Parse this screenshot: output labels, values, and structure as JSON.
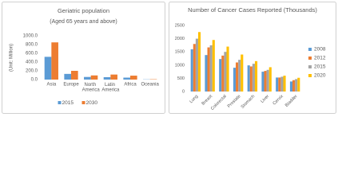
{
  "chart_data": [
    {
      "type": "bar",
      "title": "Geriatric population",
      "subtitle": "(Aged 65 years and above)",
      "y_label": "(Unit: Million)",
      "categories": [
        "Asia",
        "Europe",
        "North America",
        "Latin America",
        "Africa",
        "Oceania"
      ],
      "series": [
        {
          "name": "2015",
          "color": "#5b9bd5",
          "values": [
            520,
            130,
            60,
            55,
            45,
            5
          ]
        },
        {
          "name": "2030",
          "color": "#ed7d31",
          "values": [
            850,
            200,
            95,
            115,
            90,
            8
          ]
        }
      ],
      "ylim": [
        0,
        1000
      ],
      "yticks": [
        {
          "value": 0,
          "label": "0.0"
        },
        {
          "value": 200,
          "label": "200.0"
        },
        {
          "value": 400,
          "label": "400.0"
        },
        {
          "value": 600,
          "label": "600.0"
        },
        {
          "value": 800,
          "label": "800.0"
        },
        {
          "value": 1000,
          "label": "1000.0"
        }
      ],
      "legend": "bottom",
      "grid": false
    },
    {
      "type": "bar",
      "title": "Number of Cancer Cases Reported (Thousands)",
      "categories": [
        "Lung",
        "Breast",
        "Colorectal",
        "Prostate",
        "Stomach",
        "Liver",
        "Cervix",
        "Bladder"
      ],
      "series": [
        {
          "name": "2008",
          "color": "#5b9bd5",
          "values": [
            1600,
            1380,
            1230,
            900,
            990,
            750,
            530,
            380
          ]
        },
        {
          "name": "2012",
          "color": "#ed7d31",
          "values": [
            1800,
            1670,
            1360,
            1100,
            950,
            780,
            530,
            430
          ]
        },
        {
          "name": "2015",
          "color": "#a5a5a5",
          "values": [
            2000,
            1750,
            1500,
            1200,
            1050,
            820,
            560,
            470
          ]
        },
        {
          "name": "2020",
          "color": "#ffc000",
          "values": [
            2250,
            1950,
            1700,
            1400,
            1150,
            920,
            600,
            520
          ]
        }
      ],
      "ylim": [
        0,
        2500
      ],
      "yticks": [
        0,
        500,
        1000,
        1500,
        2000,
        2500
      ],
      "legend": "right",
      "grid": false
    }
  ]
}
